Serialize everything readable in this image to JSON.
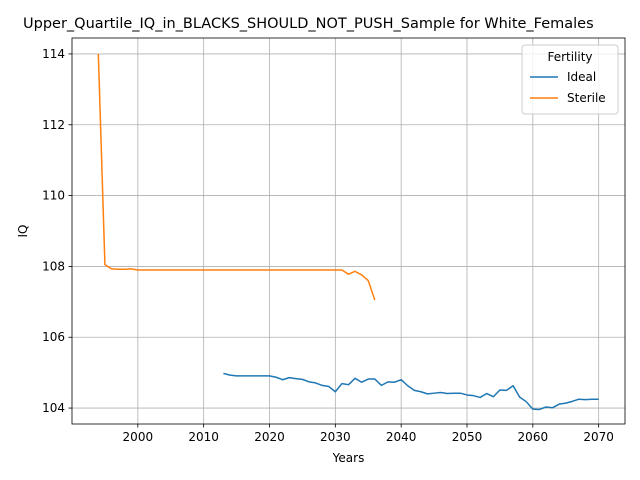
{
  "chart_data": {
    "type": "line",
    "title": "Upper_Quartile_IQ_in_BLACKS_SHOULD_NOT_PUSH_Sample for White_Females",
    "xlabel": "Years",
    "ylabel": "IQ",
    "xlim": [
      1990,
      2074
    ],
    "ylim": [
      103.55,
      114.45
    ],
    "xticks": [
      2000,
      2010,
      2020,
      2030,
      2040,
      2050,
      2060,
      2070
    ],
    "yticks": [
      104,
      106,
      108,
      110,
      112,
      114
    ],
    "xtick_labels": [
      "2000",
      "2010",
      "2020",
      "2030",
      "2040",
      "2050",
      "2060",
      "2070"
    ],
    "ytick_labels": [
      "104",
      "106",
      "108",
      "110",
      "112",
      "114"
    ],
    "grid": true,
    "legend": {
      "title": "Fertility",
      "placement": "top-right",
      "entries": [
        "Ideal",
        "Sterile"
      ]
    },
    "series": [
      {
        "name": "Ideal",
        "color": "#1f77b4",
        "x": [
          2013,
          2014,
          2015,
          2016,
          2017,
          2018,
          2019,
          2020,
          2021,
          2022,
          2023,
          2024,
          2025,
          2026,
          2027,
          2028,
          2029,
          2030,
          2031,
          2032,
          2033,
          2034,
          2035,
          2036,
          2037,
          2038,
          2039,
          2040,
          2041,
          2042,
          2043,
          2044,
          2045,
          2046,
          2047,
          2048,
          2049,
          2050,
          2051,
          2052,
          2053,
          2054,
          2055,
          2056,
          2057,
          2058,
          2059,
          2060,
          2061,
          2062,
          2063,
          2064,
          2065,
          2066,
          2067,
          2068,
          2069,
          2070
        ],
        "y": [
          104.98,
          104.93,
          104.91,
          104.91,
          104.91,
          104.91,
          104.91,
          104.91,
          104.87,
          104.8,
          104.86,
          104.83,
          104.81,
          104.74,
          104.71,
          104.64,
          104.61,
          104.46,
          104.69,
          104.66,
          104.84,
          104.73,
          104.82,
          104.82,
          104.64,
          104.74,
          104.73,
          104.8,
          104.63,
          104.5,
          104.46,
          104.4,
          104.42,
          104.44,
          104.41,
          104.42,
          104.42,
          104.37,
          104.35,
          104.3,
          104.41,
          104.32,
          104.51,
          104.5,
          104.63,
          104.31,
          104.18,
          103.97,
          103.96,
          104.03,
          104.01,
          104.11,
          104.14,
          104.19,
          104.25,
          104.24,
          104.25,
          104.25
        ]
      },
      {
        "name": "Sterile",
        "color": "#ff7f0e",
        "x": [
          1994,
          1995,
          1996,
          1997,
          1998,
          1999,
          2000,
          2001,
          2002,
          2003,
          2004,
          2005,
          2006,
          2007,
          2008,
          2009,
          2010,
          2011,
          2012,
          2013,
          2014,
          2015,
          2016,
          2017,
          2018,
          2019,
          2020,
          2021,
          2022,
          2023,
          2024,
          2025,
          2026,
          2027,
          2028,
          2029,
          2030,
          2031,
          2032,
          2033,
          2034,
          2035,
          2036
        ],
        "y": [
          114.0,
          108.05,
          107.93,
          107.92,
          107.92,
          107.93,
          107.9,
          107.9,
          107.9,
          107.9,
          107.9,
          107.9,
          107.9,
          107.9,
          107.9,
          107.9,
          107.9,
          107.9,
          107.9,
          107.9,
          107.9,
          107.9,
          107.9,
          107.9,
          107.9,
          107.9,
          107.9,
          107.9,
          107.9,
          107.9,
          107.9,
          107.9,
          107.9,
          107.9,
          107.9,
          107.9,
          107.9,
          107.9,
          107.78,
          107.86,
          107.76,
          107.6,
          107.05
        ]
      }
    ]
  }
}
